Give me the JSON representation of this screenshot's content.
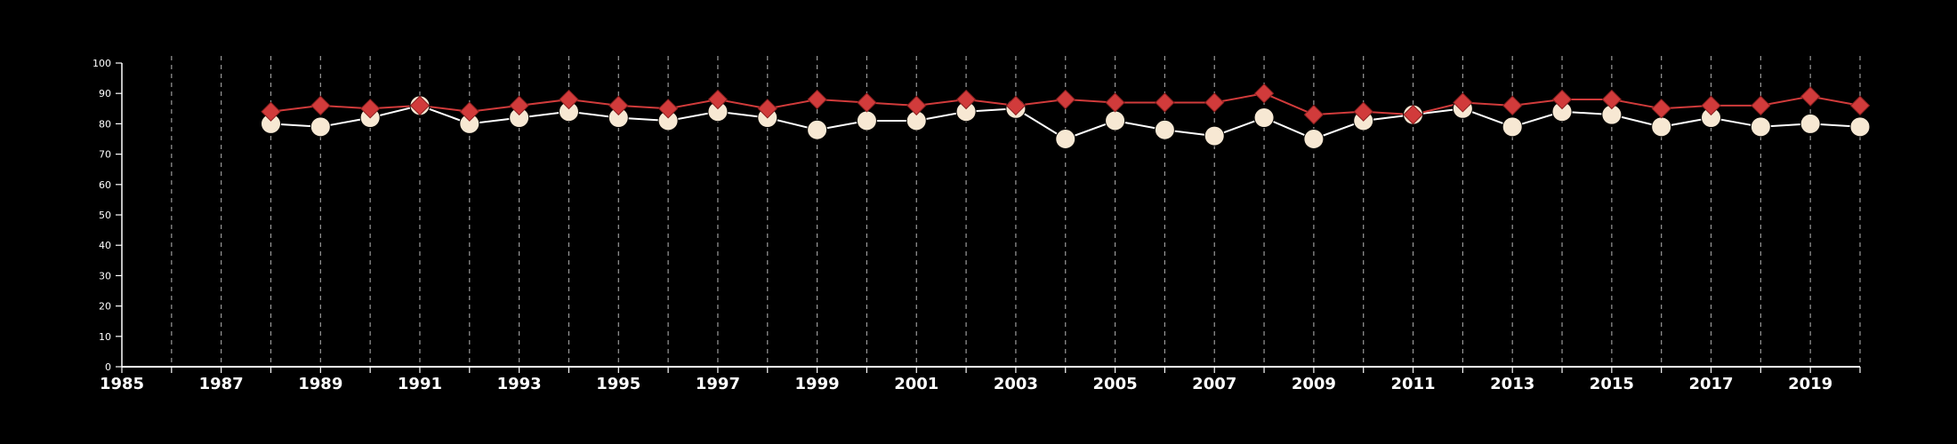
{
  "chart_data": {
    "type": "line",
    "title": "",
    "xlabel": "",
    "ylabel": "",
    "xlim": [
      1985,
      2020
    ],
    "ylim": [
      0,
      100
    ],
    "grid": "vertical-dashed",
    "legend": "none",
    "x_ticks": [
      1985,
      1987,
      1989,
      1991,
      1993,
      1995,
      1997,
      1999,
      2001,
      2003,
      2005,
      2007,
      2009,
      2011,
      2013,
      2015,
      2017,
      2019
    ],
    "y_ticks": [
      0,
      10,
      20,
      30,
      40,
      50,
      60,
      70,
      80,
      90,
      100
    ],
    "x": [
      1988,
      1989,
      1990,
      1991,
      1992,
      1993,
      1994,
      1995,
      1996,
      1997,
      1998,
      1999,
      2000,
      2001,
      2002,
      2003,
      2004,
      2005,
      2006,
      2007,
      2008,
      2009,
      2010,
      2011,
      2012,
      2013,
      2014,
      2015,
      2016,
      2017,
      2018,
      2019,
      2020
    ],
    "series": [
      {
        "marker": "diamond",
        "color": "#d13b3b",
        "values": [
          84,
          86,
          85,
          86,
          84,
          86,
          88,
          86,
          85,
          88,
          85,
          88,
          87,
          86,
          88,
          86,
          88,
          87,
          87,
          87,
          90,
          83,
          84,
          83,
          87,
          86,
          88,
          88,
          85,
          86,
          86,
          89,
          86
        ]
      },
      {
        "marker": "circle",
        "color": "#f7e8d3",
        "values": [
          80,
          79,
          82,
          86,
          80,
          82,
          84,
          82,
          81,
          84,
          82,
          78,
          81,
          81,
          84,
          85,
          75,
          81,
          78,
          76,
          82,
          75,
          81,
          83,
          85,
          79,
          84,
          83,
          79,
          82,
          79,
          80,
          79
        ]
      }
    ]
  }
}
